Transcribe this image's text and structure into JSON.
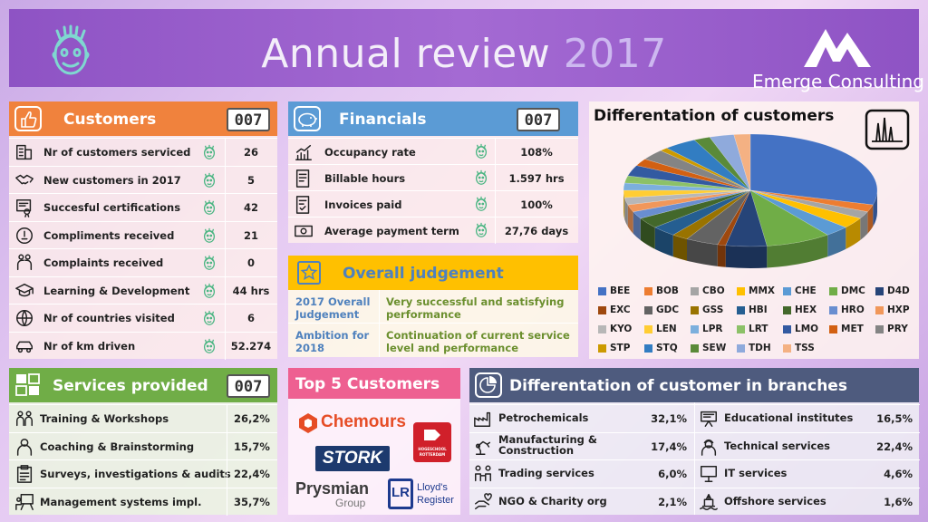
{
  "header": {
    "title_main": "Annual review ",
    "title_year": "2017",
    "brand": "Emerge Consulting",
    "logo_icon": "face-icon"
  },
  "colors": {
    "header": "#9b5fcc",
    "customers": "#f0823d",
    "financials": "#5b9bd5",
    "overall": "#ffc000",
    "services": "#70ad47",
    "top5": "#ee6091",
    "branches": "#4e5b7e"
  },
  "customers": {
    "title": "Customers",
    "counter": "007",
    "rows": [
      {
        "label": "Nr of customers serviced",
        "value": "26",
        "icon": "building-icon"
      },
      {
        "label": "New customers in 2017",
        "value": "5",
        "icon": "handshake-icon"
      },
      {
        "label": "Succesful certifications",
        "value": "42",
        "icon": "certificate-icon"
      },
      {
        "label": "Compliments received",
        "value": "21",
        "icon": "compliment-icon"
      },
      {
        "label": "Complaints received",
        "value": "0",
        "icon": "complaint-icon"
      },
      {
        "label": "Learning & Development",
        "value": "44 hrs",
        "icon": "graduation-icon"
      },
      {
        "label": "Nr of countries visited",
        "value": "6",
        "icon": "globe-icon"
      },
      {
        "label": "Nr of km driven",
        "value": "52.274",
        "icon": "car-icon"
      }
    ]
  },
  "financials": {
    "title": "Financials",
    "counter": "007",
    "rows": [
      {
        "label": "Occupancy rate",
        "value": "108%",
        "icon": "growth-chart-icon"
      },
      {
        "label": "Billable hours",
        "value": "1.597 hrs",
        "icon": "invoice-icon"
      },
      {
        "label": "Invoices paid",
        "value": "100%",
        "icon": "paid-invoice-icon"
      },
      {
        "label": "Average payment term",
        "value": "27,76 days",
        "icon": "money-icon"
      }
    ]
  },
  "overall": {
    "title": "Overall judgement",
    "rows": [
      {
        "label": "2017 Overall Judgement",
        "text": "Very successful and satisfying performance"
      },
      {
        "label": "Ambition for 2018",
        "text": "Continuation of current service level and performance"
      }
    ]
  },
  "chart_data": {
    "type": "pie",
    "title": "Differentation of customers",
    "legend": "bottom",
    "categories": [
      "BEE",
      "BOB",
      "CBO",
      "MMX",
      "CHE",
      "DMC",
      "D4D",
      "EXC",
      "GDC",
      "GSS",
      "HBI",
      "HEX",
      "HRO",
      "HXP",
      "KYO",
      "LEN",
      "LPR",
      "LRT",
      "LMO",
      "MET",
      "PRY",
      "STP",
      "STQ",
      "SEW",
      "TDH",
      "TSS"
    ],
    "colors": [
      "#4472c4",
      "#ed7d31",
      "#a5a5a5",
      "#ffc000",
      "#5b9bd5",
      "#70ad47",
      "#264478",
      "#9e480e",
      "#636363",
      "#997300",
      "#255e91",
      "#43682b",
      "#698ed0",
      "#f1975a",
      "#b7b7b7",
      "#ffcd33",
      "#7cafdd",
      "#8cc168",
      "#335aa1",
      "#d26012",
      "#848484",
      "#cc9a00",
      "#327dc2",
      "#5a8a39",
      "#8faadc",
      "#f4b183"
    ],
    "values": [
      28,
      2,
      2,
      3,
      3,
      8,
      5,
      1,
      4,
      2,
      3,
      3,
      2,
      2,
      2,
      2,
      2,
      2,
      3,
      2,
      3,
      1,
      4,
      2,
      3,
      2
    ]
  },
  "services": {
    "title": "Services provided",
    "counter": "007",
    "rows": [
      {
        "label": "Training & Workshops",
        "value": "26,2%",
        "icon": "training-icon"
      },
      {
        "label": "Coaching & Brainstorming",
        "value": "15,7%",
        "icon": "coach-icon"
      },
      {
        "label": "Surveys, investigations & audits",
        "value": "22,4%",
        "icon": "clipboard-icon"
      },
      {
        "label": "Management systems impl.",
        "value": "35,7%",
        "icon": "presentation-icon"
      }
    ]
  },
  "top5": {
    "title": "Top 5 Customers",
    "logos": {
      "chemours": "Chemours",
      "stork": "STORK",
      "hogeschool_1": "HOGESCHOOL",
      "hogeschool_2": "ROTTERDAM",
      "prysmian_1": "Prysmian",
      "prysmian_2": "Group",
      "lloyds_1": "Lloyd's",
      "lloyds_2": "Register",
      "lloyds_mark": "LR"
    }
  },
  "branches": {
    "title": "Differentation of customer in branches",
    "left": [
      {
        "label": "Petrochemicals",
        "value": "32,1%",
        "icon": "factory-icon"
      },
      {
        "label": "Manufacturing &\nConstruction",
        "value": "17,4%",
        "icon": "robot-arm-icon"
      },
      {
        "label": "Trading services",
        "value": "6,0%",
        "icon": "trading-icon"
      },
      {
        "label": "NGO & Charity org",
        "value": "2,1%",
        "icon": "charity-hand-icon"
      }
    ],
    "right": [
      {
        "label": "Educational institutes",
        "value": "16,5%",
        "icon": "school-icon"
      },
      {
        "label": "Technical services",
        "value": "22,4%",
        "icon": "engineer-icon"
      },
      {
        "label": "IT services",
        "value": "4,6%",
        "icon": "computer-icon"
      },
      {
        "label": "Offshore services",
        "value": "1,6%",
        "icon": "offshore-icon"
      }
    ]
  }
}
